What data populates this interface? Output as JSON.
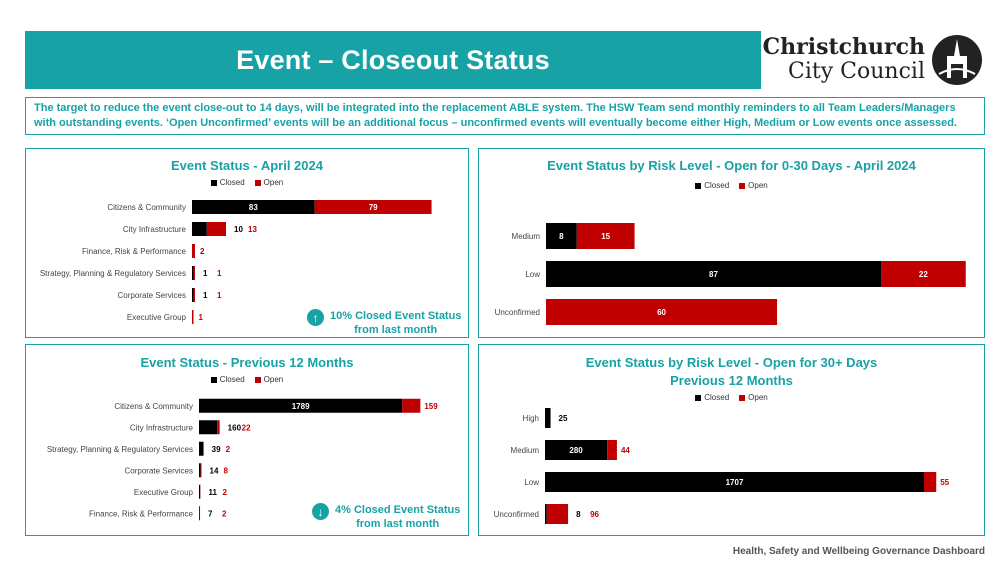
{
  "header": {
    "title": "Event – Closeout Status"
  },
  "logo": {
    "line1": "Christchurch",
    "line2": "City Council"
  },
  "note": "The target to reduce the event close-out to 14 days, will be integrated into the replacement ABLE system. The HSW Team send monthly reminders to all Team Leaders/Managers with outstanding events.  ‘Open Unconfirmed’ events will be an additional focus – unconfirmed events will eventually become either High, Medium or Low events once assessed.",
  "colors": {
    "teal": "#17a2a6",
    "closed": "#000000",
    "open": "#c00000"
  },
  "legend": {
    "closed": "Closed",
    "open": "Open"
  },
  "chart_data": [
    {
      "id": "april",
      "type": "bar",
      "orientation": "horizontal",
      "stacked": true,
      "title": "Event Status - April 2024",
      "categories": [
        "Citizens & Community",
        "City Infrastructure",
        "Finance, Risk & Performance",
        "Strategy, Planning & Regulatory Services",
        "Corporate Services",
        "Executive Group"
      ],
      "series": [
        {
          "name": "Closed",
          "values": [
            83,
            10,
            0,
            1,
            1,
            0
          ]
        },
        {
          "name": "Open",
          "values": [
            79,
            13,
            2,
            1,
            1,
            1
          ]
        }
      ],
      "xlim": [
        0,
        165
      ]
    },
    {
      "id": "risk_030",
      "type": "bar",
      "orientation": "horizontal",
      "stacked": true,
      "title": "Event  Status by Risk Level - Open for 0-30 Days  - April 2024",
      "categories": [
        "Medium",
        "Low",
        "Unconfirmed"
      ],
      "series": [
        {
          "name": "Closed",
          "values": [
            8,
            87,
            0
          ]
        },
        {
          "name": "Open",
          "values": [
            15,
            22,
            60
          ]
        }
      ],
      "xlim": [
        0,
        114
      ]
    },
    {
      "id": "last12",
      "type": "bar",
      "orientation": "horizontal",
      "stacked": true,
      "title": "Event Status - Previous 12 Months",
      "categories": [
        "Citizens & Community",
        "City Infrastructure",
        "Strategy, Planning & Regulatory Services",
        "Corporate Services",
        "Executive Group",
        "Finance, Risk & Performance"
      ],
      "series": [
        {
          "name": "Closed",
          "values": [
            1789,
            160,
            39,
            14,
            11,
            7
          ]
        },
        {
          "name": "Open",
          "values": [
            159,
            22,
            2,
            8,
            2,
            2
          ]
        }
      ],
      "xlim": [
        0,
        1980
      ]
    },
    {
      "id": "risk_30p",
      "type": "bar",
      "orientation": "horizontal",
      "stacked": true,
      "title": "Event Status by Risk Level - Open for 30+ Days",
      "subtitle": "Previous 12 Months",
      "categories": [
        "High",
        "Medium",
        "Low",
        "Unconfirmed"
      ],
      "series": [
        {
          "name": "Closed",
          "values": [
            25,
            280,
            1707,
            8
          ]
        },
        {
          "name": "Open",
          "values": [
            0,
            44,
            55,
            96
          ]
        }
      ],
      "xlim": [
        0,
        1770
      ]
    }
  ],
  "callouts": {
    "april": {
      "icon": "arrow-up-icon",
      "line1": "10% Closed Event Status",
      "line2": "from last month"
    },
    "last12": {
      "icon": "arrow-down-icon",
      "line1": "4% Closed Event Status",
      "line2": "from last month"
    }
  },
  "footer": "Health, Safety and Wellbeing Governance Dashboard"
}
